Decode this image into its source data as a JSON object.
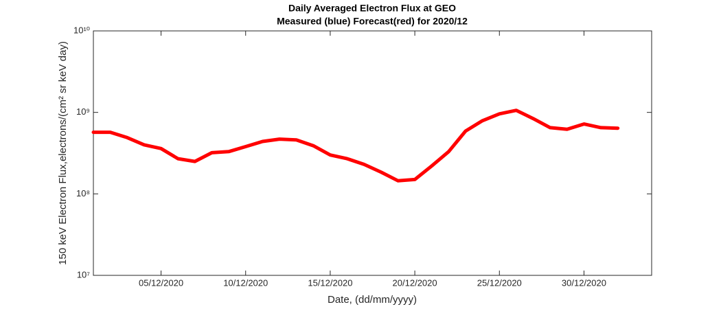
{
  "chart_data": {
    "type": "line",
    "title": "Daily Averaged Electron Flux at GEO",
    "subtitle": "Measured (blue) Forecast(red) for 2020/12",
    "x_label": "Date, (dd/mm/yyyy)",
    "y_label": "150 keV Electron Flux,electrons/(cm² sr keV day)",
    "log_y": true,
    "x": [
      "2020-12-01",
      "2020-12-02",
      "2020-12-03",
      "2020-12-04",
      "2020-12-05",
      "2020-12-06",
      "2020-12-07",
      "2020-12-08",
      "2020-12-09",
      "2020-12-10",
      "2020-12-11",
      "2020-12-12",
      "2020-12-13",
      "2020-12-14",
      "2020-12-15",
      "2020-12-16",
      "2020-12-17",
      "2020-12-18",
      "2020-12-19",
      "2020-12-20",
      "2020-12-21",
      "2020-12-22",
      "2020-12-23",
      "2020-12-24",
      "2020-12-25",
      "2020-12-26",
      "2020-12-27",
      "2020-12-28",
      "2020-12-29",
      "2020-12-30",
      "2020-12-31",
      "2021-01-01"
    ],
    "series": [
      {
        "name": "Forecast",
        "color": "#ff0000",
        "values": [
          570000000,
          570000000,
          490000000,
          400000000,
          360000000,
          270000000,
          250000000,
          320000000,
          330000000,
          380000000,
          440000000,
          470000000,
          460000000,
          390000000,
          300000000,
          270000000,
          230000000,
          185000000,
          145000000,
          150000000,
          220000000,
          330000000,
          590000000,
          790000000,
          960000000,
          1060000000,
          840000000,
          650000000,
          620000000,
          720000000,
          650000000,
          640000000
        ]
      }
    ],
    "xlim": [
      "2020-12-01",
      "2021-01-03"
    ],
    "xticks": [
      {
        "value": "2020-12-05",
        "label": "05/12/2020"
      },
      {
        "value": "2020-12-10",
        "label": "10/12/2020"
      },
      {
        "value": "2020-12-15",
        "label": "15/12/2020"
      },
      {
        "value": "2020-12-20",
        "label": "20/12/2020"
      },
      {
        "value": "2020-12-25",
        "label": "25/12/2020"
      },
      {
        "value": "2020-12-30",
        "label": "30/12/2020"
      }
    ],
    "ylim": [
      10000000,
      10000000000
    ],
    "yticks": [
      {
        "value": 10000000,
        "label": "10⁷"
      },
      {
        "value": 100000000,
        "label": "10⁸"
      },
      {
        "value": 1000000000,
        "label": "10⁹"
      },
      {
        "value": 10000000000,
        "label": "10¹⁰"
      }
    ]
  }
}
